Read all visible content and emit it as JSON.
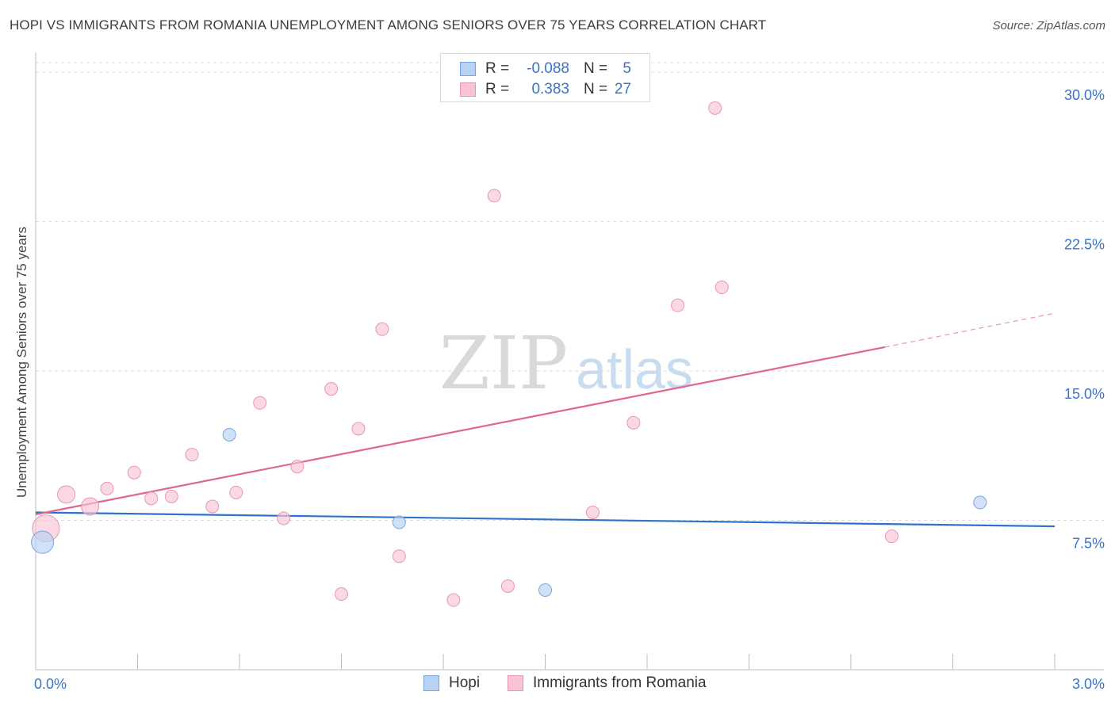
{
  "title": "HOPI VS IMMIGRANTS FROM ROMANIA UNEMPLOYMENT AMONG SENIORS OVER 75 YEARS CORRELATION CHART",
  "source": "Source: ZipAtlas.com",
  "watermark": {
    "zip": "ZIP",
    "atlas": "atlas"
  },
  "colors": {
    "hopi_fill": "#b8d2f4",
    "hopi_stroke": "#7aa5dc",
    "hopi_line": "#2f72c9",
    "romania_fill": "#f9c4d3",
    "romania_stroke": "#e896ae",
    "romania_line": "#e06690",
    "tick_label": "#3a74c4",
    "grid": "#dcdcdc"
  },
  "legend": {
    "rows": [
      {
        "r_label": "R =",
        "r_value": "-0.088",
        "n_label": "N =",
        "n_value": "5"
      },
      {
        "r_label": "R =",
        "r_value": "0.383",
        "n_label": "N =",
        "n_value": "27"
      }
    ]
  },
  "bottom_legend": {
    "hopi": "Hopi",
    "romania": "Immigrants from Romania"
  },
  "chart_data": {
    "type": "scatter",
    "title": "HOPI VS IMMIGRANTS FROM ROMANIA UNEMPLOYMENT AMONG SENIORS OVER 75 YEARS CORRELATION CHART",
    "xlabel": "",
    "ylabel": "Unemployment Among Seniors over 75 years",
    "xlim": [
      0,
      3.0
    ],
    "ylim": [
      0,
      31.0
    ],
    "x_tick_labels": [
      "0.0%",
      "3.0%"
    ],
    "y_ticks": [
      7.5,
      15.0,
      22.5,
      30.0
    ],
    "y_tick_labels": [
      "7.5%",
      "15.0%",
      "22.5%",
      "30.0%"
    ],
    "series": [
      {
        "name": "Hopi",
        "points": [
          {
            "x": 0.02,
            "y": 6.4,
            "size": "large"
          },
          {
            "x": 0.57,
            "y": 11.8,
            "size": "small"
          },
          {
            "x": 1.07,
            "y": 7.4,
            "size": "small"
          },
          {
            "x": 1.5,
            "y": 4.0,
            "size": "small"
          },
          {
            "x": 2.78,
            "y": 8.4,
            "size": "small"
          }
        ],
        "trend": {
          "x0": 0.0,
          "y0": 7.9,
          "x1": 3.0,
          "y1": 7.2
        }
      },
      {
        "name": "Immigrants from Romania",
        "points": [
          {
            "x": 0.03,
            "y": 7.1,
            "size": "xlarge"
          },
          {
            "x": 0.09,
            "y": 8.8,
            "size": "medium"
          },
          {
            "x": 0.16,
            "y": 8.2,
            "size": "medium"
          },
          {
            "x": 0.21,
            "y": 9.1,
            "size": "small"
          },
          {
            "x": 0.29,
            "y": 9.9,
            "size": "small"
          },
          {
            "x": 0.34,
            "y": 8.6,
            "size": "small"
          },
          {
            "x": 0.4,
            "y": 8.7,
            "size": "small"
          },
          {
            "x": 0.46,
            "y": 10.8,
            "size": "small"
          },
          {
            "x": 0.52,
            "y": 8.2,
            "size": "small"
          },
          {
            "x": 0.59,
            "y": 8.9,
            "size": "small"
          },
          {
            "x": 0.66,
            "y": 13.4,
            "size": "small"
          },
          {
            "x": 0.73,
            "y": 7.6,
            "size": "small"
          },
          {
            "x": 0.77,
            "y": 10.2,
            "size": "small"
          },
          {
            "x": 0.87,
            "y": 14.1,
            "size": "small"
          },
          {
            "x": 0.9,
            "y": 3.8,
            "size": "small"
          },
          {
            "x": 0.95,
            "y": 12.1,
            "size": "small"
          },
          {
            "x": 1.02,
            "y": 17.1,
            "size": "small"
          },
          {
            "x": 1.07,
            "y": 5.7,
            "size": "small"
          },
          {
            "x": 1.23,
            "y": 3.5,
            "size": "small"
          },
          {
            "x": 1.35,
            "y": 23.8,
            "size": "small"
          },
          {
            "x": 1.39,
            "y": 4.2,
            "size": "small"
          },
          {
            "x": 1.64,
            "y": 7.9,
            "size": "small"
          },
          {
            "x": 1.76,
            "y": 12.4,
            "size": "small"
          },
          {
            "x": 1.89,
            "y": 18.3,
            "size": "small"
          },
          {
            "x": 2.0,
            "y": 28.2,
            "size": "small"
          },
          {
            "x": 2.02,
            "y": 19.2,
            "size": "small"
          },
          {
            "x": 2.52,
            "y": 6.7,
            "size": "small"
          }
        ],
        "trend": {
          "x0": 0.0,
          "y0": 7.8,
          "x1": 2.5,
          "y1": 16.2,
          "x_dash_end": 3.0,
          "y_dash_end": 17.9
        }
      }
    ]
  }
}
